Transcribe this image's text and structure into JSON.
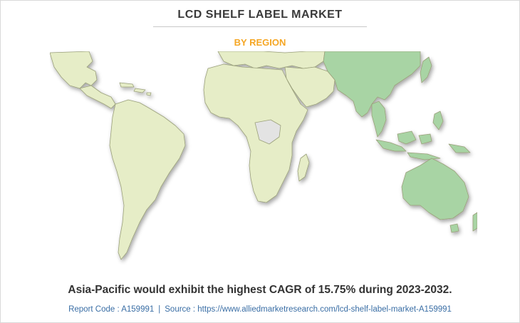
{
  "header": {
    "title": "LCD SHELF LABEL MARKET",
    "subtitle": "BY REGION"
  },
  "map": {
    "regions": [
      {
        "name": "North America",
        "color": "#e6edc7"
      },
      {
        "name": "Latin America",
        "color": "#e6edc7"
      },
      {
        "name": "Europe",
        "color": "#e6edc7"
      },
      {
        "name": "Africa",
        "color": "#e6edc7"
      },
      {
        "name": "Middle East",
        "color": "#e6edc7"
      },
      {
        "name": "Asia-Pacific",
        "color": "#a8d4a4"
      }
    ],
    "highlight_color": "#a8d4a4",
    "base_color": "#e6edc7",
    "no_data_color": "#e3e3e3",
    "border_color": "#9aa07a"
  },
  "footer": {
    "caption": "Asia-Pacific would exhibit the highest CAGR of 15.75% during 2023-2032.",
    "report_code": "Report Code : A159991",
    "separator": "|",
    "source": "Source : https://www.alliedmarketresearch.com/lcd-shelf-label-market-A159991"
  }
}
